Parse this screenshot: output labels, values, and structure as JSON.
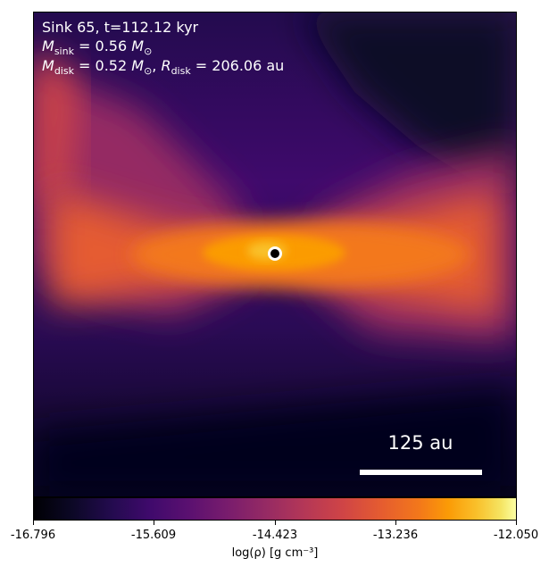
{
  "annotation": {
    "line1": "Sink 65, t=112.12 kyr",
    "line2": {
      "symbol": "M",
      "sub": "sink",
      "equals": " = 0.56 ",
      "unit": "M",
      "unit_sub": "⊙"
    },
    "line3": {
      "m_symbol": "M",
      "m_sub": "disk",
      "m_equals": " = 0.52 ",
      "m_unit": "M",
      "m_unit_sub": "⊙",
      "sep": ", ",
      "r_symbol": "R",
      "r_sub": "disk",
      "r_equals": " = 206.06 au"
    }
  },
  "scale_bar": {
    "label": "125 au"
  },
  "colorbar": {
    "colormap": "inferno",
    "ticks": [
      "-16.796",
      "-15.609",
      "-14.423",
      "-13.236",
      "-12.050"
    ],
    "label": "log(ρ) [g cm⁻³]"
  },
  "colors": {
    "text_on_image": "#ffffff",
    "sink_marker_ring": "#ffffff",
    "sink_marker_fill": "#000000"
  }
}
